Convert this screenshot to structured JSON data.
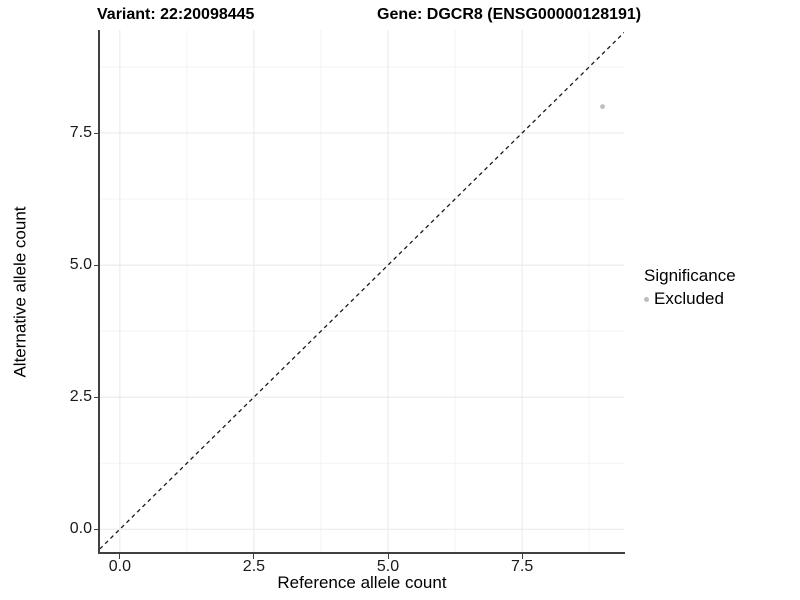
{
  "chart_data": {
    "type": "scatter",
    "titles": {
      "left": "Variant: 22:20098445",
      "right": "Gene: DGCR8 (ENSG00000128191)"
    },
    "xlabel": "Reference allele count",
    "ylabel": "Alternative allele count",
    "xlim": [
      -0.37,
      9.4
    ],
    "ylim": [
      -0.45,
      9.45
    ],
    "x_ticks": [
      {
        "value": 0.0,
        "label": "0.0"
      },
      {
        "value": 2.5,
        "label": "2.5"
      },
      {
        "value": 5.0,
        "label": "5.0"
      },
      {
        "value": 7.5,
        "label": "7.5"
      }
    ],
    "y_ticks": [
      {
        "value": 0.0,
        "label": "0.0"
      },
      {
        "value": 2.5,
        "label": "2.5"
      },
      {
        "value": 5.0,
        "label": "5.0"
      },
      {
        "value": 7.5,
        "label": "7.5"
      }
    ],
    "x_minor": [
      1.25,
      3.75,
      6.25,
      8.75
    ],
    "y_minor": [
      1.25,
      3.75,
      6.25,
      8.75
    ],
    "grid": {
      "major": true,
      "minor": true
    },
    "points": [
      {
        "x": 9,
        "y": 8,
        "series": "Excluded",
        "color": "#bdbdbd"
      }
    ],
    "identity_line": {
      "slope": 1,
      "intercept": 0,
      "style": "dashed"
    },
    "legend": {
      "title": "Significance",
      "position": "right",
      "items": [
        {
          "label": "Excluded",
          "color": "#bdbdbd"
        }
      ]
    }
  },
  "colors": {
    "point": "#bdbdbd",
    "grid_major": "#e8e8e8",
    "grid_minor": "#f3f3f3",
    "axis_line": "#404040",
    "dashed_line": "#1a1a1a",
    "text": "#000000"
  }
}
